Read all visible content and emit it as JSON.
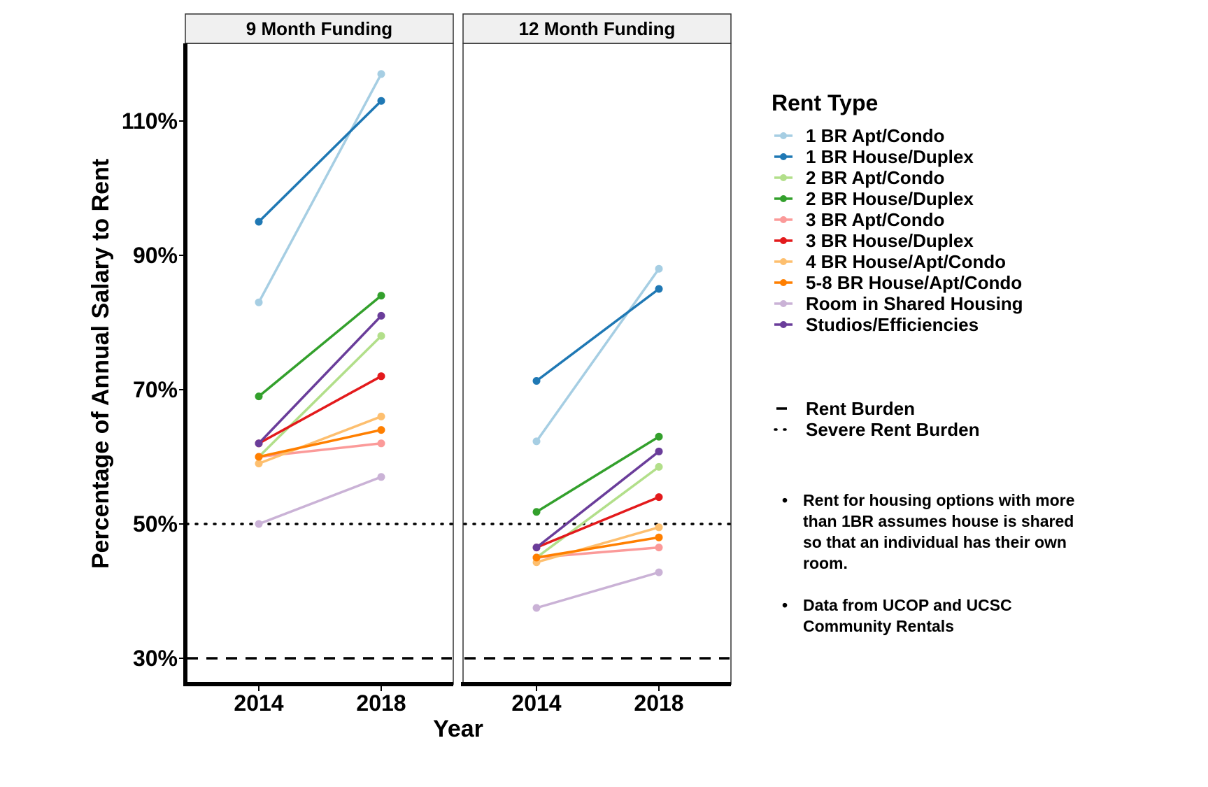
{
  "chart_data": {
    "type": "line",
    "ylabel": "Percentage of Annual Salary to Rent",
    "xlabel": "Year",
    "x": [
      "2014",
      "2018"
    ],
    "y_ticks": [
      "30%",
      "50%",
      "70%",
      "90%",
      "110%"
    ],
    "y_tick_values": [
      30,
      50,
      70,
      90,
      110
    ],
    "ylim": [
      26,
      120
    ],
    "grid": false,
    "legend_position": "right",
    "legend_title": "Rent Type",
    "panels": [
      {
        "title": "9 Month Funding",
        "series": [
          {
            "name": "1 BR Apt/Condo",
            "color": "#a6cee3",
            "values": [
              83,
              117
            ]
          },
          {
            "name": "1 BR House/Duplex",
            "color": "#1f78b4",
            "values": [
              95,
              113
            ]
          },
          {
            "name": "2 BR Apt/Condo",
            "color": "#b2df8a",
            "values": [
              60,
              78
            ]
          },
          {
            "name": "2 BR House/Duplex",
            "color": "#33a02c",
            "values": [
              69,
              84
            ]
          },
          {
            "name": "3 BR Apt/Condo",
            "color": "#fb9a99",
            "values": [
              60,
              62
            ]
          },
          {
            "name": "3 BR House/Duplex",
            "color": "#e31a1c",
            "values": [
              62,
              72
            ]
          },
          {
            "name": "4 BR House/Apt/Condo",
            "color": "#fdbf6f",
            "values": [
              59,
              66
            ]
          },
          {
            "name": "5-8 BR House/Apt/Condo",
            "color": "#ff7f00",
            "values": [
              60,
              64
            ]
          },
          {
            "name": "Room in Shared Housing",
            "color": "#cab2d6",
            "values": [
              50,
              57
            ]
          },
          {
            "name": "Studios/Efficiencies",
            "color": "#6a3d9a",
            "values": [
              62,
              81
            ]
          }
        ]
      },
      {
        "title": "12 Month Funding",
        "series": [
          {
            "name": "1 BR Apt/Condo",
            "color": "#a6cee3",
            "values": [
              62.3,
              88
            ]
          },
          {
            "name": "1 BR House/Duplex",
            "color": "#1f78b4",
            "values": [
              71.3,
              85
            ]
          },
          {
            "name": "2 BR Apt/Condo",
            "color": "#b2df8a",
            "values": [
              45,
              58.5
            ]
          },
          {
            "name": "2 BR House/Duplex",
            "color": "#33a02c",
            "values": [
              51.8,
              63
            ]
          },
          {
            "name": "3 BR Apt/Condo",
            "color": "#fb9a99",
            "values": [
              45,
              46.5
            ]
          },
          {
            "name": "3 BR House/Duplex",
            "color": "#e31a1c",
            "values": [
              46.5,
              54
            ]
          },
          {
            "name": "4 BR House/Apt/Condo",
            "color": "#fdbf6f",
            "values": [
              44.3,
              49.5
            ]
          },
          {
            "name": "5-8 BR House/Apt/Condo",
            "color": "#ff7f00",
            "values": [
              45,
              48
            ]
          },
          {
            "name": "Room in Shared Housing",
            "color": "#cab2d6",
            "values": [
              37.5,
              42.8
            ]
          },
          {
            "name": "Studios/Efficiencies",
            "color": "#6a3d9a",
            "values": [
              46.5,
              60.8
            ]
          }
        ]
      }
    ],
    "reference_lines": [
      {
        "name": "Rent Burden",
        "value": 30,
        "style": "dashed",
        "color": "#000000"
      },
      {
        "name": "Severe Rent Burden",
        "value": 50,
        "style": "dotted",
        "color": "#000000"
      }
    ]
  },
  "notes": [
    "Rent for housing options with more than 1BR assumes house is shared so that an individual has their own room.",
    "Data from UCOP and UCSC Community Rentals"
  ],
  "bullet_glyph": "•"
}
